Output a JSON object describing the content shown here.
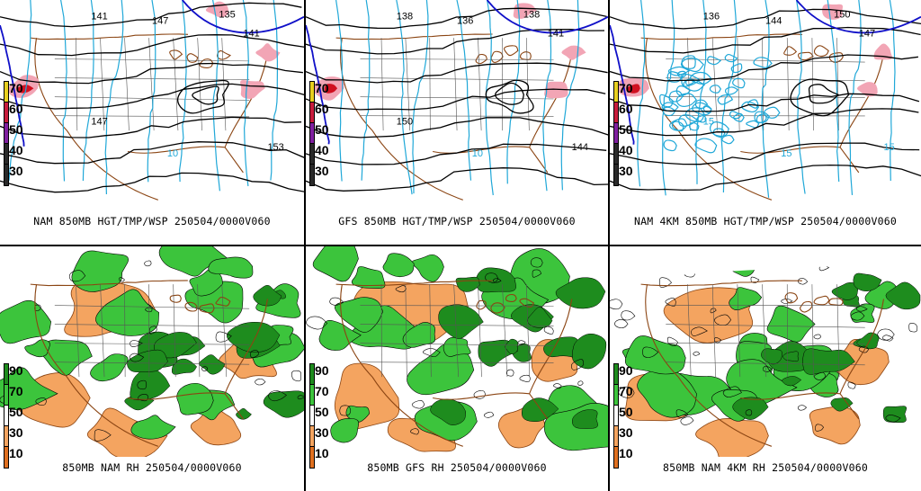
{
  "panels": [
    {
      "caption": "NAM 850MB HGT/TMP/WSP 250504/0000V060",
      "legend": [
        "70",
        "60",
        "50",
        "40",
        "30"
      ],
      "type": "wind",
      "labels": [
        "141",
        "147",
        "135",
        "141",
        "153",
        "147",
        "10"
      ]
    },
    {
      "caption": "GFS 850MB HGT/TMP/WSP 250504/0000V060",
      "legend": [
        "70",
        "60",
        "50",
        "40",
        "30"
      ],
      "type": "wind",
      "labels": [
        "138",
        "136",
        "138",
        "141",
        "144",
        "150",
        "10"
      ]
    },
    {
      "caption": "NAM 4KM 850MB HGT/TMP/WSP 250504/0000V060",
      "legend": [
        "70",
        "60",
        "50",
        "40",
        "30"
      ],
      "type": "wind",
      "labels": [
        "136",
        "144",
        "150",
        "147",
        "15",
        "15",
        "15"
      ]
    },
    {
      "caption": "850MB NAM RH 250504/0000V060",
      "legend": [
        "90",
        "70",
        "50",
        "30",
        "10"
      ],
      "type": "rh"
    },
    {
      "caption": "850MB GFS RH 250504/0000V060",
      "legend": [
        "90",
        "70",
        "50",
        "30",
        "10"
      ],
      "type": "rh"
    },
    {
      "caption": "850MB NAM 4KM RH 250504/0000V060",
      "legend": [
        "90",
        "70",
        "50",
        "30",
        "10"
      ],
      "type": "rh"
    }
  ],
  "colors": {
    "dry": "#f4a460",
    "moist_light": "#3cc43c",
    "moist_dark": "#1e8c1e",
    "jet_pink": "#f2a5b5",
    "jet_red": "#d01020",
    "height_line": "#000000",
    "temp_line": "#20a8d8",
    "freeze_line": "#1010c8",
    "border": "#8b4513"
  }
}
